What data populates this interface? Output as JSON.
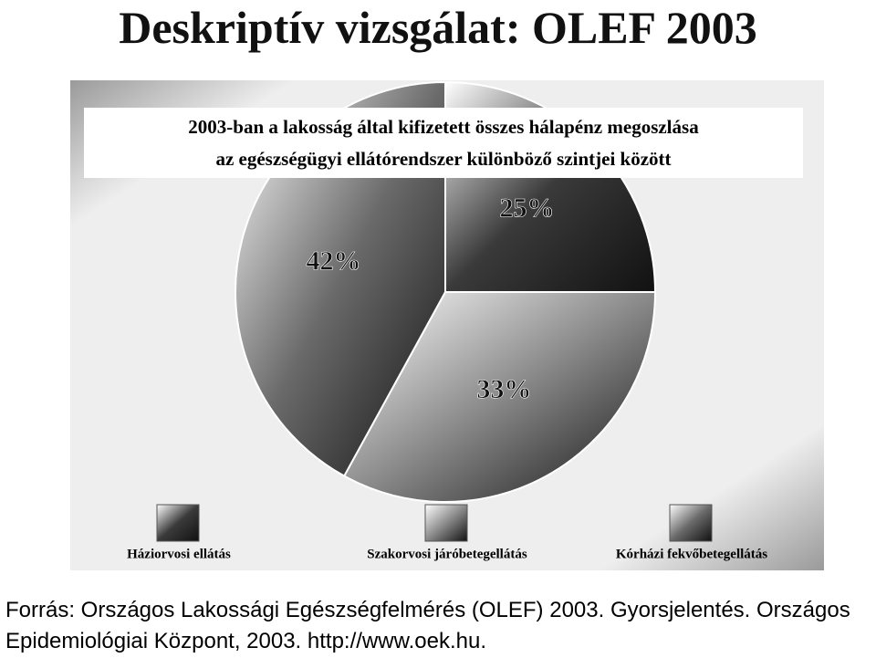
{
  "page": {
    "title": "Deskriptív vizsgálat: OLEF 2003",
    "source": "Forrás: Országos Lakossági Egészségfelmérés (OLEF) 2003. Gyorsjelentés. Országos Epidemiológiai Központ, 2003. http://www.oek.hu."
  },
  "chart_data": {
    "type": "pie",
    "title": "2003-ban a lakosság által kifizetett összes hálapénz megoszlása",
    "subtitle": "az egészségügyi ellátórendszer különböző szintjei között",
    "categories": [
      "Háziorvosi ellátás",
      "Szakorvosi járóbetegellátás",
      "Kórházi fekvőbetegellátás"
    ],
    "values": [
      25,
      33,
      42
    ],
    "value_labels": [
      "25%",
      "33%",
      "42%"
    ],
    "colors": [
      "#3a3a3a",
      "#8a8a8a",
      "#6a6a6a"
    ]
  }
}
